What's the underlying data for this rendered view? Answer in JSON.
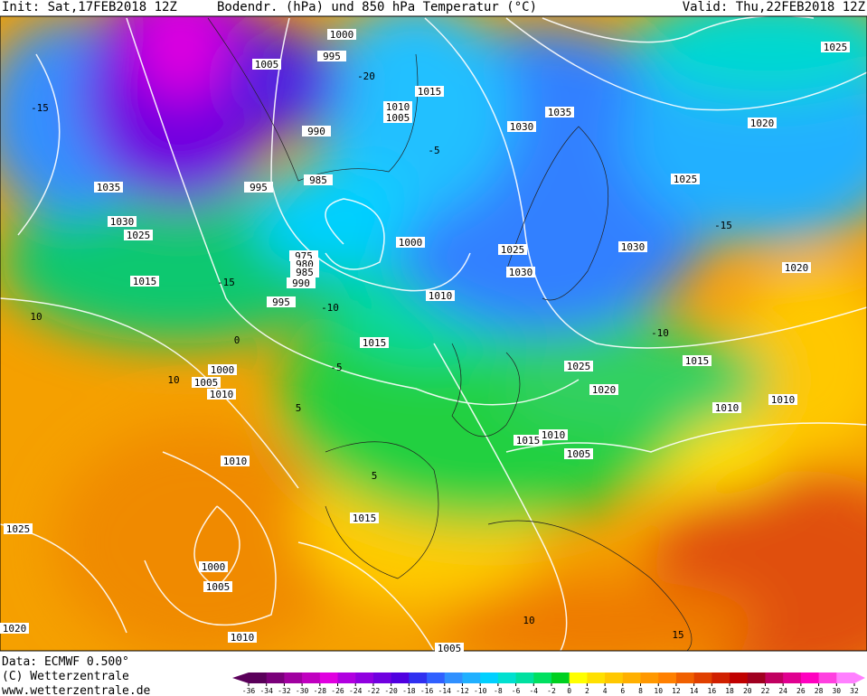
{
  "header": {
    "init": "Init: Sat,17FEB2018 12Z",
    "title": "Bodendr. (hPa) und 850 hPa Temperatur (°C)",
    "valid": "Valid: Thu,22FEB2018 12Z"
  },
  "isobar_labels": [
    "1000",
    "995",
    "1005",
    "1015",
    "1010",
    "1005",
    "990",
    "1030",
    "1035",
    "1020",
    "1025",
    "1025",
    "985",
    "995",
    "1035",
    "1030",
    "1025",
    "1000",
    "1025",
    "1030",
    "975",
    "980",
    "985",
    "990",
    "1030",
    "1015",
    "1020",
    "995",
    "1010",
    "1015",
    "1025",
    "1015",
    "1000",
    "1005",
    "1010",
    "1020",
    "1010",
    "1010",
    "1010",
    "1015",
    "1005",
    "1010",
    "1015",
    "1025",
    "1000",
    "1005",
    "1020",
    "1010",
    "1005"
  ],
  "temperature_labels": [
    "-15",
    "-20",
    "-15",
    "-10",
    "-5",
    "0",
    "5",
    "10",
    "10",
    "5",
    "10",
    "15",
    "-10",
    "-15",
    "-5"
  ],
  "footer": {
    "data": "Data: ECMWF  0.500°",
    "copyright": "(C) Wetterzentrale",
    "url": "www.wetterzentrale.de"
  },
  "colorbar": {
    "ticks": [
      -36,
      -34,
      -32,
      -30,
      -28,
      -26,
      -24,
      -22,
      -20,
      -18,
      -16,
      -14,
      -12,
      -10,
      -8,
      -6,
      -4,
      -2,
      0,
      2,
      4,
      6,
      8,
      10,
      12,
      14,
      16,
      18,
      20,
      22,
      24,
      26,
      28,
      30,
      32
    ],
    "colors": [
      "#5a005a",
      "#7a007a",
      "#a000a0",
      "#c000c0",
      "#e000e0",
      "#b000e0",
      "#9000e0",
      "#7000e0",
      "#5000e0",
      "#3030f0",
      "#3060ff",
      "#3090ff",
      "#20b0ff",
      "#00d0ff",
      "#00e0d0",
      "#00e0a0",
      "#00e060",
      "#00d020",
      "#ffff00",
      "#ffe000",
      "#ffc800",
      "#ffb000",
      "#ff9800",
      "#ff8000",
      "#f06000",
      "#e04000",
      "#d02000",
      "#c00000",
      "#a00020",
      "#c00060",
      "#e00090",
      "#ff00c0",
      "#ff40e0",
      "#ff80ff"
    ]
  }
}
